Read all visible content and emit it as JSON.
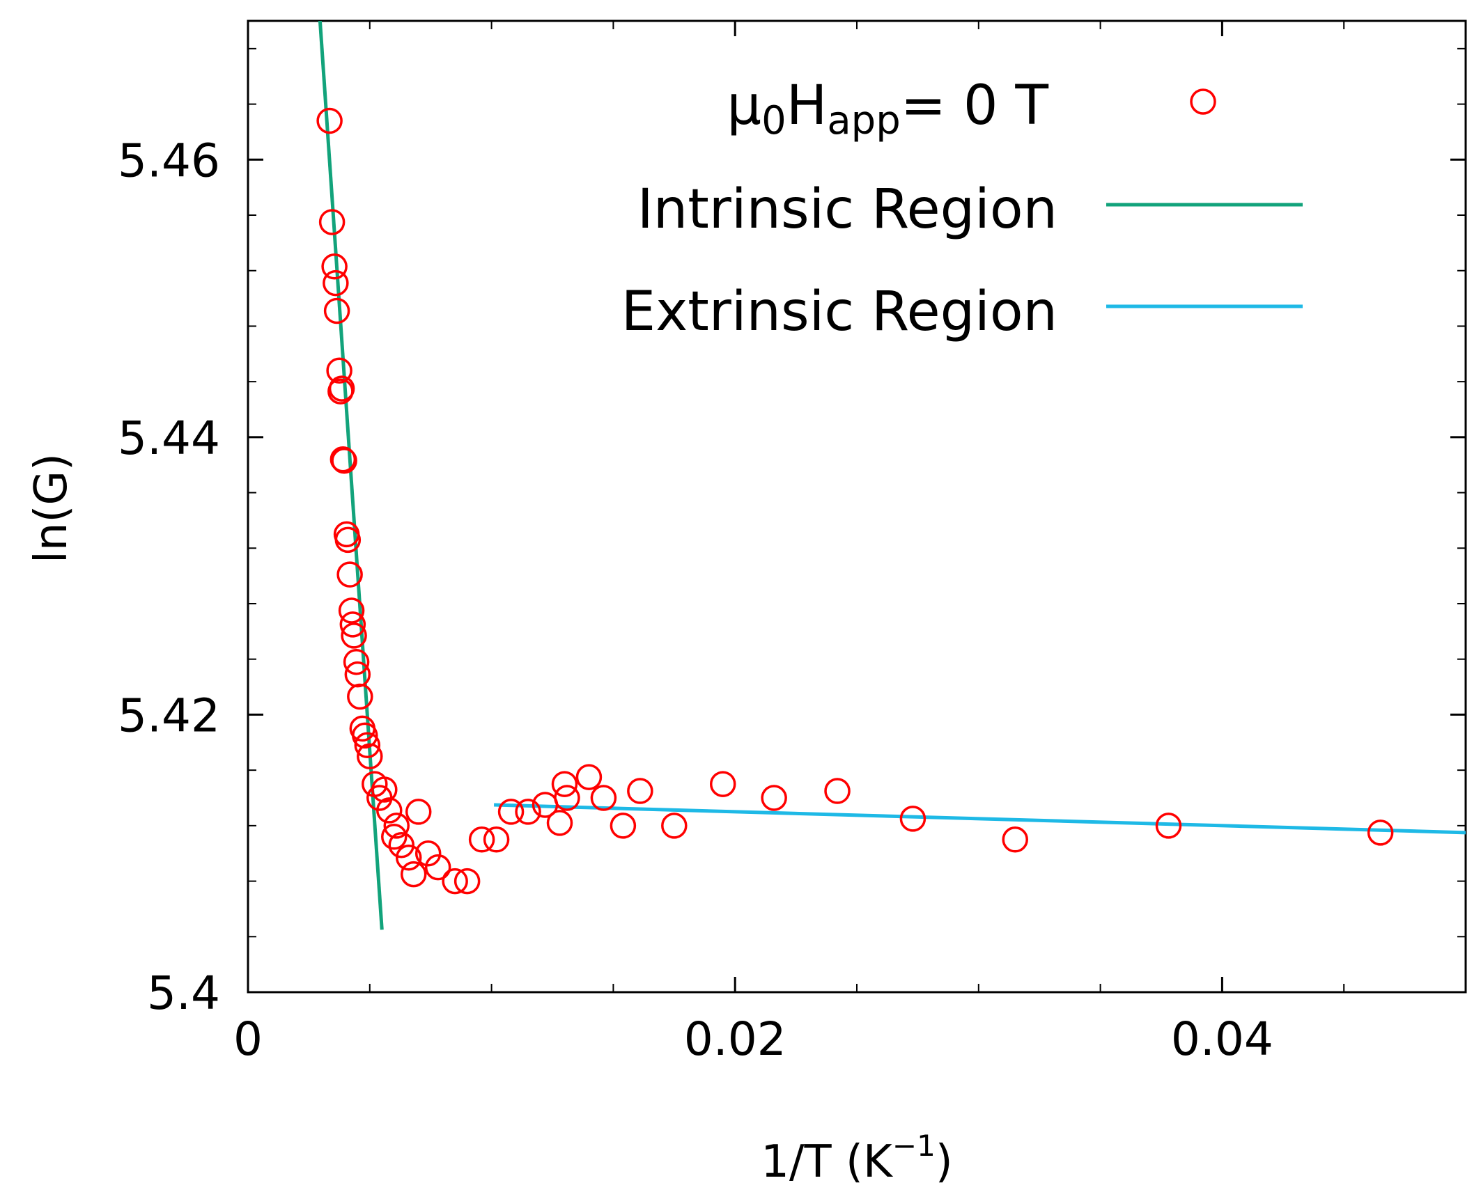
{
  "chart_data": {
    "type": "scatter",
    "xlabel": "1/T (K",
    "xlabel_superscript": "−1",
    "xlabel_suffix": ")",
    "ylabel": "ln(G)",
    "xlim": [
      0,
      0.05
    ],
    "ylim": [
      5.4,
      5.47
    ],
    "x_ticks": [
      {
        "value": 0,
        "label": "0"
      },
      {
        "value": 0.02,
        "label": "0.02"
      },
      {
        "value": 0.04,
        "label": "0.04"
      }
    ],
    "y_ticks": [
      {
        "value": 5.4,
        "label": "5.4"
      },
      {
        "value": 5.42,
        "label": "5.42"
      },
      {
        "value": 5.44,
        "label": "5.44"
      },
      {
        "value": 5.46,
        "label": "5.46"
      }
    ],
    "legend": {
      "placement": "top-right",
      "data_label": {
        "prefix": "μ",
        "sub1": "0",
        "mid": "H",
        "sub2": "app",
        "suffix": "= 0 T"
      },
      "intrinsic_label": "Intrinsic Region",
      "extrinsic_label": "Extrinsic Region"
    },
    "colors": {
      "data": "#ff0000",
      "intrinsic": "#12a37b",
      "extrinsic": "#1eb9e6",
      "axis": "#000000"
    },
    "series": [
      {
        "name": "μ0Happ= 0 T",
        "marker": "open-circle",
        "points": [
          [
            0.00335,
            5.4628
          ],
          [
            0.00345,
            5.4555
          ],
          [
            0.00355,
            5.4523
          ],
          [
            0.0036,
            5.4511
          ],
          [
            0.00365,
            5.4491
          ],
          [
            0.00375,
            5.4448
          ],
          [
            0.0038,
            5.4433
          ],
          [
            0.00385,
            5.4435
          ],
          [
            0.0039,
            5.4384
          ],
          [
            0.00395,
            5.4383
          ],
          [
            0.00405,
            5.433
          ],
          [
            0.0041,
            5.4326
          ],
          [
            0.00418,
            5.4301
          ],
          [
            0.00425,
            5.4275
          ],
          [
            0.0043,
            5.4265
          ],
          [
            0.00435,
            5.4257
          ],
          [
            0.00445,
            5.4238
          ],
          [
            0.0045,
            5.4229
          ],
          [
            0.0046,
            5.4213
          ],
          [
            0.0047,
            5.419
          ],
          [
            0.0048,
            5.4185
          ],
          [
            0.0049,
            5.4178
          ],
          [
            0.005,
            5.417
          ],
          [
            0.0052,
            5.415
          ],
          [
            0.0054,
            5.414
          ],
          [
            0.0056,
            5.4146
          ],
          [
            0.0058,
            5.4131
          ],
          [
            0.006,
            5.4112
          ],
          [
            0.0061,
            5.412
          ],
          [
            0.0063,
            5.4106
          ],
          [
            0.0066,
            5.4097
          ],
          [
            0.0068,
            5.4085
          ],
          [
            0.007,
            5.413
          ],
          [
            0.0074,
            5.41
          ],
          [
            0.0078,
            5.409
          ],
          [
            0.0085,
            5.408
          ],
          [
            0.009,
            5.408
          ],
          [
            0.0096,
            5.411
          ],
          [
            0.0102,
            5.411
          ],
          [
            0.0108,
            5.413
          ],
          [
            0.0115,
            5.413
          ],
          [
            0.0122,
            5.4135
          ],
          [
            0.0128,
            5.4122
          ],
          [
            0.0131,
            5.414
          ],
          [
            0.013,
            5.415
          ],
          [
            0.014,
            5.4155
          ],
          [
            0.0146,
            5.414
          ],
          [
            0.0154,
            5.412
          ],
          [
            0.0161,
            5.4145
          ],
          [
            0.0175,
            5.412
          ],
          [
            0.0195,
            5.415
          ],
          [
            0.0216,
            5.414
          ],
          [
            0.0242,
            5.4145
          ],
          [
            0.0273,
            5.4125
          ],
          [
            0.0315,
            5.411
          ],
          [
            0.0378,
            5.412
          ],
          [
            0.0465,
            5.4115
          ]
        ]
      }
    ],
    "fits": [
      {
        "name": "Intrinsic Region",
        "x": [
          0.0029,
          0.0055
        ],
        "y": [
          5.4715,
          5.4045
        ]
      },
      {
        "name": "Extrinsic Region",
        "x": [
          0.0101,
          0.05
        ],
        "y": [
          5.4135,
          5.4115
        ]
      }
    ]
  }
}
